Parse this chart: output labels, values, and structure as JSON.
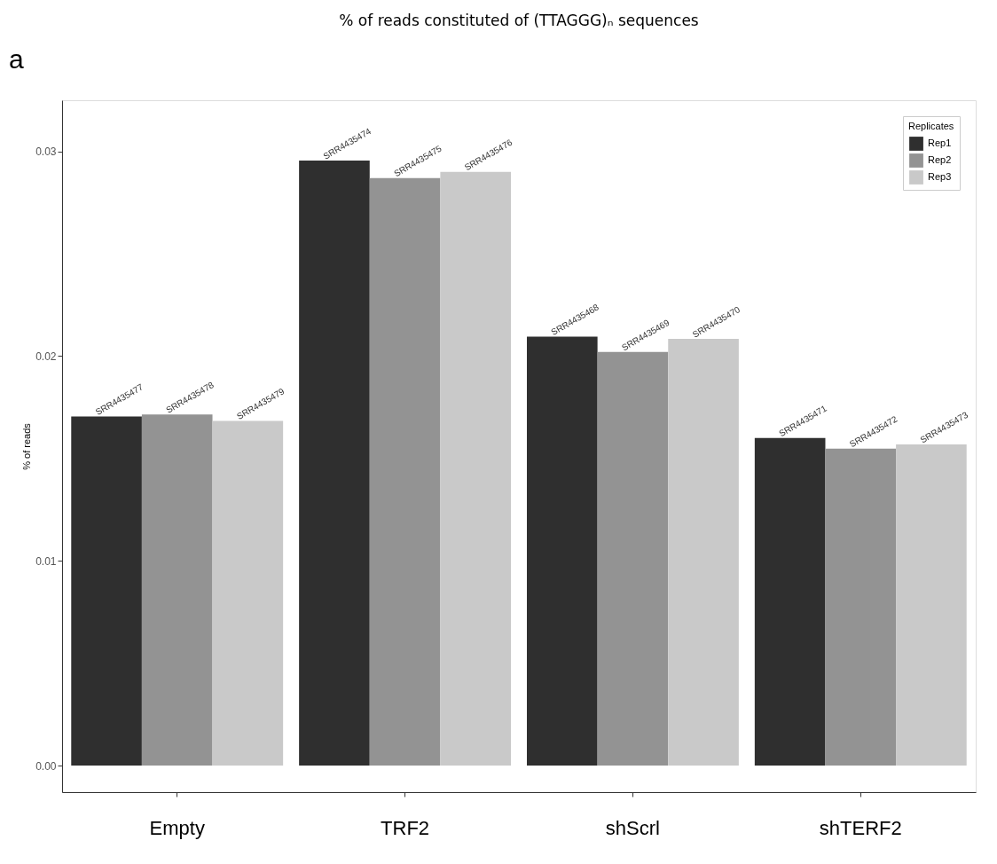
{
  "chart_data": {
    "type": "bar",
    "title": "% of reads constituted of (TTAGGG)ₙ sequences",
    "ylabel": "% of reads",
    "legend_title": "Replicates",
    "annotations": [
      "a"
    ],
    "categories": [
      "Empty",
      "TRF2",
      "shScrl",
      "shTERF2"
    ],
    "series": [
      {
        "name": "Rep1",
        "color": "#2f2f2f",
        "values": [
          0.01705,
          0.02955,
          0.02095,
          0.016
        ],
        "value_labels": [
          "SRR4435477",
          "SRR4435474",
          "SRR4435468",
          "SRR4435471"
        ]
      },
      {
        "name": "Rep2",
        "color": "#939393",
        "values": [
          0.01715,
          0.0287,
          0.0202,
          0.01548
        ],
        "value_labels": [
          "SRR4435478",
          "SRR4435475",
          "SRR4435469",
          "SRR4435472"
        ]
      },
      {
        "name": "Rep3",
        "color": "#c9c9c9",
        "values": [
          0.01684,
          0.029,
          0.02084,
          0.01569
        ],
        "value_labels": [
          "SRR4435479",
          "SRR4435476",
          "SRR4435470",
          "SRR4435473"
        ]
      }
    ],
    "ylim": [
      -0.0013,
      0.0325
    ],
    "yticks": [
      {
        "value": 0,
        "label": "0.00"
      },
      {
        "value": 0.01,
        "label": "0.01"
      },
      {
        "value": 0.02,
        "label": "0.02"
      },
      {
        "value": 0.03,
        "label": "0.03"
      }
    ],
    "grid": false,
    "legend": "top right"
  }
}
